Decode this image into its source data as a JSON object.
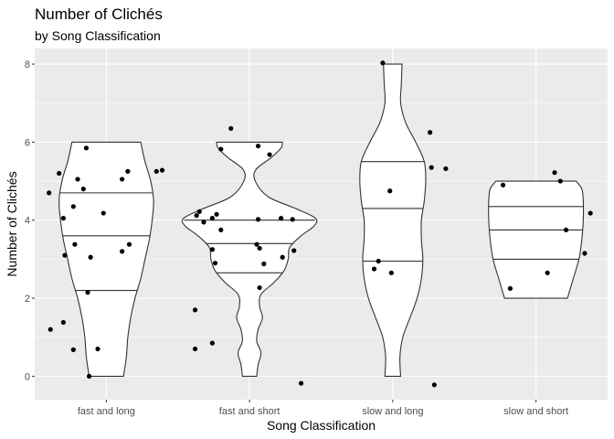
{
  "chart_data": {
    "type": "violin",
    "title": "Number of Clichés",
    "subtitle": "by Song Classification",
    "xlabel": "Song Classification",
    "ylabel": "Number of Clichés",
    "categories": [
      "fast and long",
      "fast and short",
      "slow and long",
      "slow and short"
    ],
    "ylim": [
      -0.6,
      8.4
    ],
    "yticks": [
      0,
      2,
      4,
      6,
      8
    ],
    "grid": true,
    "background": "#ebebeb",
    "grid_color": "#ffffff",
    "violins": [
      {
        "category": "fast and long",
        "quantiles": [
          2.2,
          3.6,
          4.7
        ],
        "profile": [
          [
            0,
            0.12
          ],
          [
            0.5,
            0.14
          ],
          [
            1.0,
            0.15
          ],
          [
            1.5,
            0.17
          ],
          [
            2.0,
            0.2
          ],
          [
            2.5,
            0.24
          ],
          [
            3.0,
            0.27
          ],
          [
            3.5,
            0.3
          ],
          [
            4.0,
            0.32
          ],
          [
            4.5,
            0.33
          ],
          [
            5.0,
            0.31
          ],
          [
            5.5,
            0.27
          ],
          [
            6.0,
            0.24
          ]
        ]
      },
      {
        "category": "fast and short",
        "quantiles": [
          2.65,
          3.4,
          4.0
        ],
        "profile": [
          [
            0,
            0.05
          ],
          [
            0.3,
            0.06
          ],
          [
            0.6,
            0.08
          ],
          [
            0.9,
            0.05
          ],
          [
            1.2,
            0.06
          ],
          [
            1.5,
            0.09
          ],
          [
            1.8,
            0.07
          ],
          [
            2.1,
            0.08
          ],
          [
            2.4,
            0.17
          ],
          [
            2.7,
            0.24
          ],
          [
            3.0,
            0.27
          ],
          [
            3.3,
            0.28
          ],
          [
            3.6,
            0.36
          ],
          [
            3.85,
            0.45
          ],
          [
            4.05,
            0.46
          ],
          [
            4.3,
            0.32
          ],
          [
            4.6,
            0.13
          ],
          [
            5.0,
            0.04
          ],
          [
            5.3,
            0.045
          ],
          [
            5.6,
            0.15
          ],
          [
            5.85,
            0.22
          ],
          [
            6.0,
            0.23
          ]
        ]
      },
      {
        "category": "slow and long",
        "quantiles": [
          2.95,
          4.3,
          5.5
        ],
        "profile": [
          [
            0,
            0.055
          ],
          [
            0.5,
            0.05
          ],
          [
            1.0,
            0.07
          ],
          [
            1.5,
            0.12
          ],
          [
            2.0,
            0.17
          ],
          [
            2.5,
            0.2
          ],
          [
            3.0,
            0.21
          ],
          [
            3.5,
            0.2
          ],
          [
            4.0,
            0.2
          ],
          [
            4.5,
            0.22
          ],
          [
            5.0,
            0.23
          ],
          [
            5.5,
            0.22
          ],
          [
            6.0,
            0.16
          ],
          [
            6.5,
            0.09
          ],
          [
            7.0,
            0.055
          ],
          [
            7.5,
            0.06
          ],
          [
            8.0,
            0.065
          ]
        ]
      },
      {
        "category": "slow and short",
        "quantiles": [
          3.0,
          3.75,
          4.35
        ],
        "profile": [
          [
            2.0,
            0.22
          ],
          [
            2.5,
            0.26
          ],
          [
            3.0,
            0.3
          ],
          [
            3.5,
            0.32
          ],
          [
            4.0,
            0.33
          ],
          [
            4.5,
            0.33
          ],
          [
            4.8,
            0.32
          ],
          [
            5.0,
            0.28
          ]
        ]
      }
    ],
    "points": [
      {
        "category": "fast and long",
        "dx": -0.4,
        "y": 4.7
      },
      {
        "category": "fast and long",
        "dx": -0.33,
        "y": 5.2
      },
      {
        "category": "fast and long",
        "dx": -0.3,
        "y": 4.05
      },
      {
        "category": "fast and long",
        "dx": -0.23,
        "y": 4.35
      },
      {
        "category": "fast and long",
        "dx": -0.2,
        "y": 5.05
      },
      {
        "category": "fast and long",
        "dx": -0.16,
        "y": 4.8
      },
      {
        "category": "fast and long",
        "dx": -0.14,
        "y": 5.85
      },
      {
        "category": "fast and long",
        "dx": -0.11,
        "y": 3.05
      },
      {
        "category": "fast and long",
        "dx": -0.29,
        "y": 3.1
      },
      {
        "category": "fast and long",
        "dx": -0.22,
        "y": 3.38
      },
      {
        "category": "fast and long",
        "dx": -0.13,
        "y": 2.15
      },
      {
        "category": "fast and long",
        "dx": -0.39,
        "y": 1.2
      },
      {
        "category": "fast and long",
        "dx": -0.3,
        "y": 1.38
      },
      {
        "category": "fast and long",
        "dx": -0.23,
        "y": 0.68
      },
      {
        "category": "fast and long",
        "dx": -0.06,
        "y": 0.7
      },
      {
        "category": "fast and long",
        "dx": -0.12,
        "y": 0.0
      },
      {
        "category": "fast and long",
        "dx": -0.02,
        "y": 4.18
      },
      {
        "category": "fast and long",
        "dx": 0.11,
        "y": 3.2
      },
      {
        "category": "fast and long",
        "dx": 0.16,
        "y": 3.38
      },
      {
        "category": "fast and long",
        "dx": 0.11,
        "y": 5.05
      },
      {
        "category": "fast and long",
        "dx": 0.15,
        "y": 5.25
      },
      {
        "category": "fast and long",
        "dx": 0.35,
        "y": 5.25
      },
      {
        "category": "fast and long",
        "dx": 0.39,
        "y": 5.28
      },
      {
        "category": "fast and short",
        "dx": -0.37,
        "y": 4.12
      },
      {
        "category": "fast and short",
        "dx": -0.35,
        "y": 4.22
      },
      {
        "category": "fast and short",
        "dx": -0.32,
        "y": 3.95
      },
      {
        "category": "fast and short",
        "dx": -0.26,
        "y": 4.05
      },
      {
        "category": "fast and short",
        "dx": -0.23,
        "y": 4.15
      },
      {
        "category": "fast and short",
        "dx": -0.2,
        "y": 3.75
      },
      {
        "category": "fast and short",
        "dx": -0.26,
        "y": 3.25
      },
      {
        "category": "fast and short",
        "dx": -0.24,
        "y": 2.9
      },
      {
        "category": "fast and short",
        "dx": -0.38,
        "y": 1.7
      },
      {
        "category": "fast and short",
        "dx": -0.38,
        "y": 0.7
      },
      {
        "category": "fast and short",
        "dx": -0.26,
        "y": 0.85
      },
      {
        "category": "fast and short",
        "dx": -0.2,
        "y": 5.82
      },
      {
        "category": "fast and short",
        "dx": -0.13,
        "y": 6.35
      },
      {
        "category": "fast and short",
        "dx": 0.06,
        "y": 5.9
      },
      {
        "category": "fast and short",
        "dx": 0.14,
        "y": 5.68
      },
      {
        "category": "fast and short",
        "dx": 0.06,
        "y": 4.02
      },
      {
        "category": "fast and short",
        "dx": 0.22,
        "y": 4.05
      },
      {
        "category": "fast and short",
        "dx": 0.3,
        "y": 4.02
      },
      {
        "category": "fast and short",
        "dx": 0.05,
        "y": 3.38
      },
      {
        "category": "fast and short",
        "dx": 0.07,
        "y": 3.28
      },
      {
        "category": "fast and short",
        "dx": 0.31,
        "y": 3.22
      },
      {
        "category": "fast and short",
        "dx": 0.23,
        "y": 3.05
      },
      {
        "category": "fast and short",
        "dx": 0.1,
        "y": 2.88
      },
      {
        "category": "fast and short",
        "dx": 0.07,
        "y": 2.27
      },
      {
        "category": "fast and short",
        "dx": 0.36,
        "y": -0.18
      },
      {
        "category": "slow and long",
        "dx": -0.07,
        "y": 8.03
      },
      {
        "category": "slow and long",
        "dx": -0.02,
        "y": 4.75
      },
      {
        "category": "slow and long",
        "dx": -0.1,
        "y": 2.95
      },
      {
        "category": "slow and long",
        "dx": -0.13,
        "y": 2.75
      },
      {
        "category": "slow and long",
        "dx": -0.01,
        "y": 2.65
      },
      {
        "category": "slow and long",
        "dx": 0.26,
        "y": 6.25
      },
      {
        "category": "slow and long",
        "dx": 0.27,
        "y": 5.35
      },
      {
        "category": "slow and long",
        "dx": 0.37,
        "y": 5.32
      },
      {
        "category": "slow and long",
        "dx": 0.29,
        "y": -0.22
      },
      {
        "category": "slow and short",
        "dx": -0.23,
        "y": 4.9
      },
      {
        "category": "slow and short",
        "dx": -0.18,
        "y": 2.25
      },
      {
        "category": "slow and short",
        "dx": 0.13,
        "y": 5.22
      },
      {
        "category": "slow and short",
        "dx": 0.17,
        "y": 5.0
      },
      {
        "category": "slow and short",
        "dx": 0.21,
        "y": 3.75
      },
      {
        "category": "slow and short",
        "dx": 0.08,
        "y": 2.65
      },
      {
        "category": "slow and short",
        "dx": 0.34,
        "y": 3.15
      },
      {
        "category": "slow and short",
        "dx": 0.38,
        "y": 4.18
      }
    ]
  }
}
